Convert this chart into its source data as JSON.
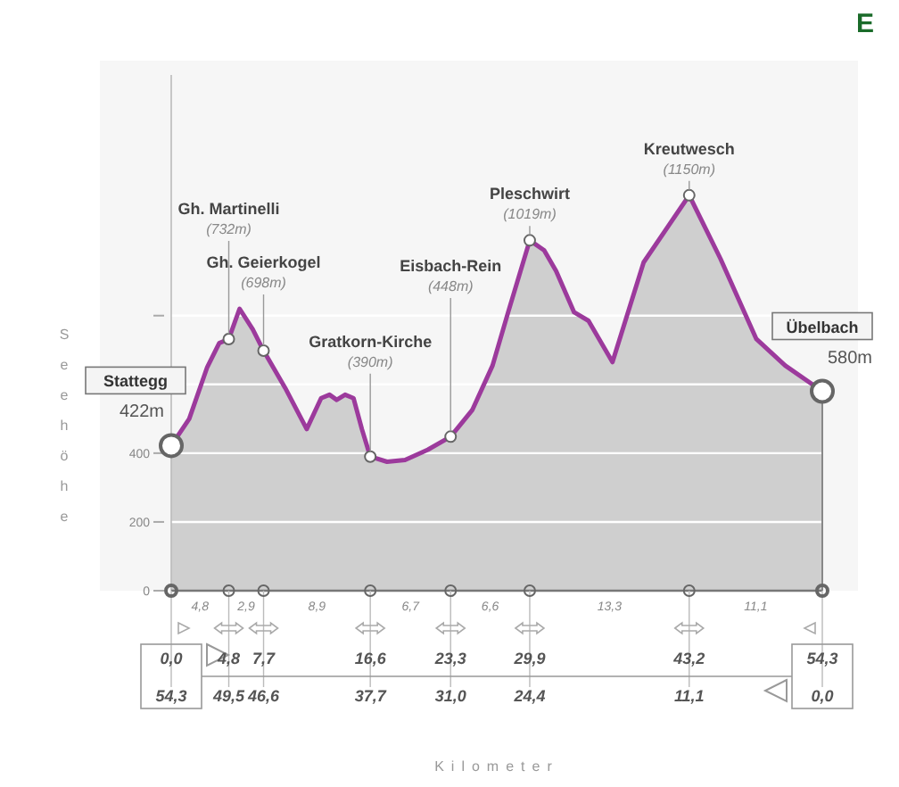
{
  "chart_data": {
    "type": "area",
    "title": "E",
    "xlabel": "Kilometer",
    "ylabel": "Seehöhe",
    "x": [
      0,
      1.5,
      3.0,
      4.0,
      4.8,
      5.7,
      6.8,
      7.7,
      9.5,
      11.3,
      12.5,
      13.2,
      13.8,
      14.5,
      15.2,
      15.9,
      16.6,
      18,
      19.5,
      21.4,
      23.3,
      25.1,
      26.8,
      28.1,
      29.9,
      31.1,
      32.1,
      33.6,
      34.8,
      36.8,
      39.4,
      43.2,
      45.8,
      48.8,
      51.2,
      54.3
    ],
    "series": [
      {
        "color": "#9c3a9c",
        "values": [
          422,
          500,
          650,
          720,
          732,
          820,
          760,
          698,
          590,
          470,
          560,
          570,
          555,
          570,
          560,
          470,
          390,
          375,
          380,
          410,
          448,
          525,
          655,
          810,
          1019,
          990,
          930,
          810,
          785,
          665,
          955,
          1150,
          966,
          732,
          655,
          580
        ]
      }
    ],
    "xlim": [
      0,
      54.3
    ],
    "xticks": [
      {
        "value": 0,
        "label": "0,0"
      },
      {
        "value": 4.8,
        "label": "4,8"
      },
      {
        "value": 7.7,
        "label": "7,7"
      },
      {
        "value": 16.6,
        "label": "16,6"
      },
      {
        "value": 23.3,
        "label": "23,3"
      },
      {
        "value": 29.9,
        "label": "29,9"
      },
      {
        "value": 43.2,
        "label": "43,2"
      },
      {
        "value": 54.3,
        "label": "54,3"
      }
    ],
    "x2lim": [
      54.3,
      0
    ],
    "x2ticks": [
      {
        "value": 54.3,
        "label": "54,3"
      },
      {
        "value": 49.5,
        "label": "49,5"
      },
      {
        "value": 46.6,
        "label": "46,6"
      },
      {
        "value": 37.7,
        "label": "37,7"
      },
      {
        "value": 31.0,
        "label": "31,0"
      },
      {
        "value": 24.4,
        "label": "24,4"
      },
      {
        "value": 11.1,
        "label": "11,1"
      },
      {
        "value": 0,
        "label": "0,0"
      }
    ],
    "ylim": [
      0,
      1500
    ],
    "yticks": [
      0,
      200,
      400,
      {
        "value": 600,
        "label": null
      },
      {
        "value": 800,
        "label": null
      }
    ],
    "grid": "y",
    "annotations": [
      {
        "text": "Stattegg\n422m",
        "x": 0,
        "y": 422
      },
      {
        "text": "Gh. Martinelli\n(732m)",
        "x": 4.8,
        "y": 732
      },
      {
        "text": "Gh. Geierkogel\n(698m)",
        "x": 7.7,
        "y": 698
      },
      {
        "text": "Gratkorn-Kirche\n(390m)",
        "x": 16.6,
        "y": 390
      },
      {
        "text": "Eisbach-Rein\n(448m)",
        "x": 23.3,
        "y": 448
      },
      {
        "text": "Pleschwirt\n(1019m)",
        "x": 29.9,
        "y": 1019
      },
      {
        "text": "Kreutwesch\n(1150m)",
        "x": 43.2,
        "y": 1150
      },
      {
        "text": "Übelbach\n580m",
        "x": 54.3,
        "y": 580
      },
      "4,8",
      "2,9",
      "8,9",
      "6,7",
      "6,6",
      "13,3",
      "11,1"
    ]
  }
}
